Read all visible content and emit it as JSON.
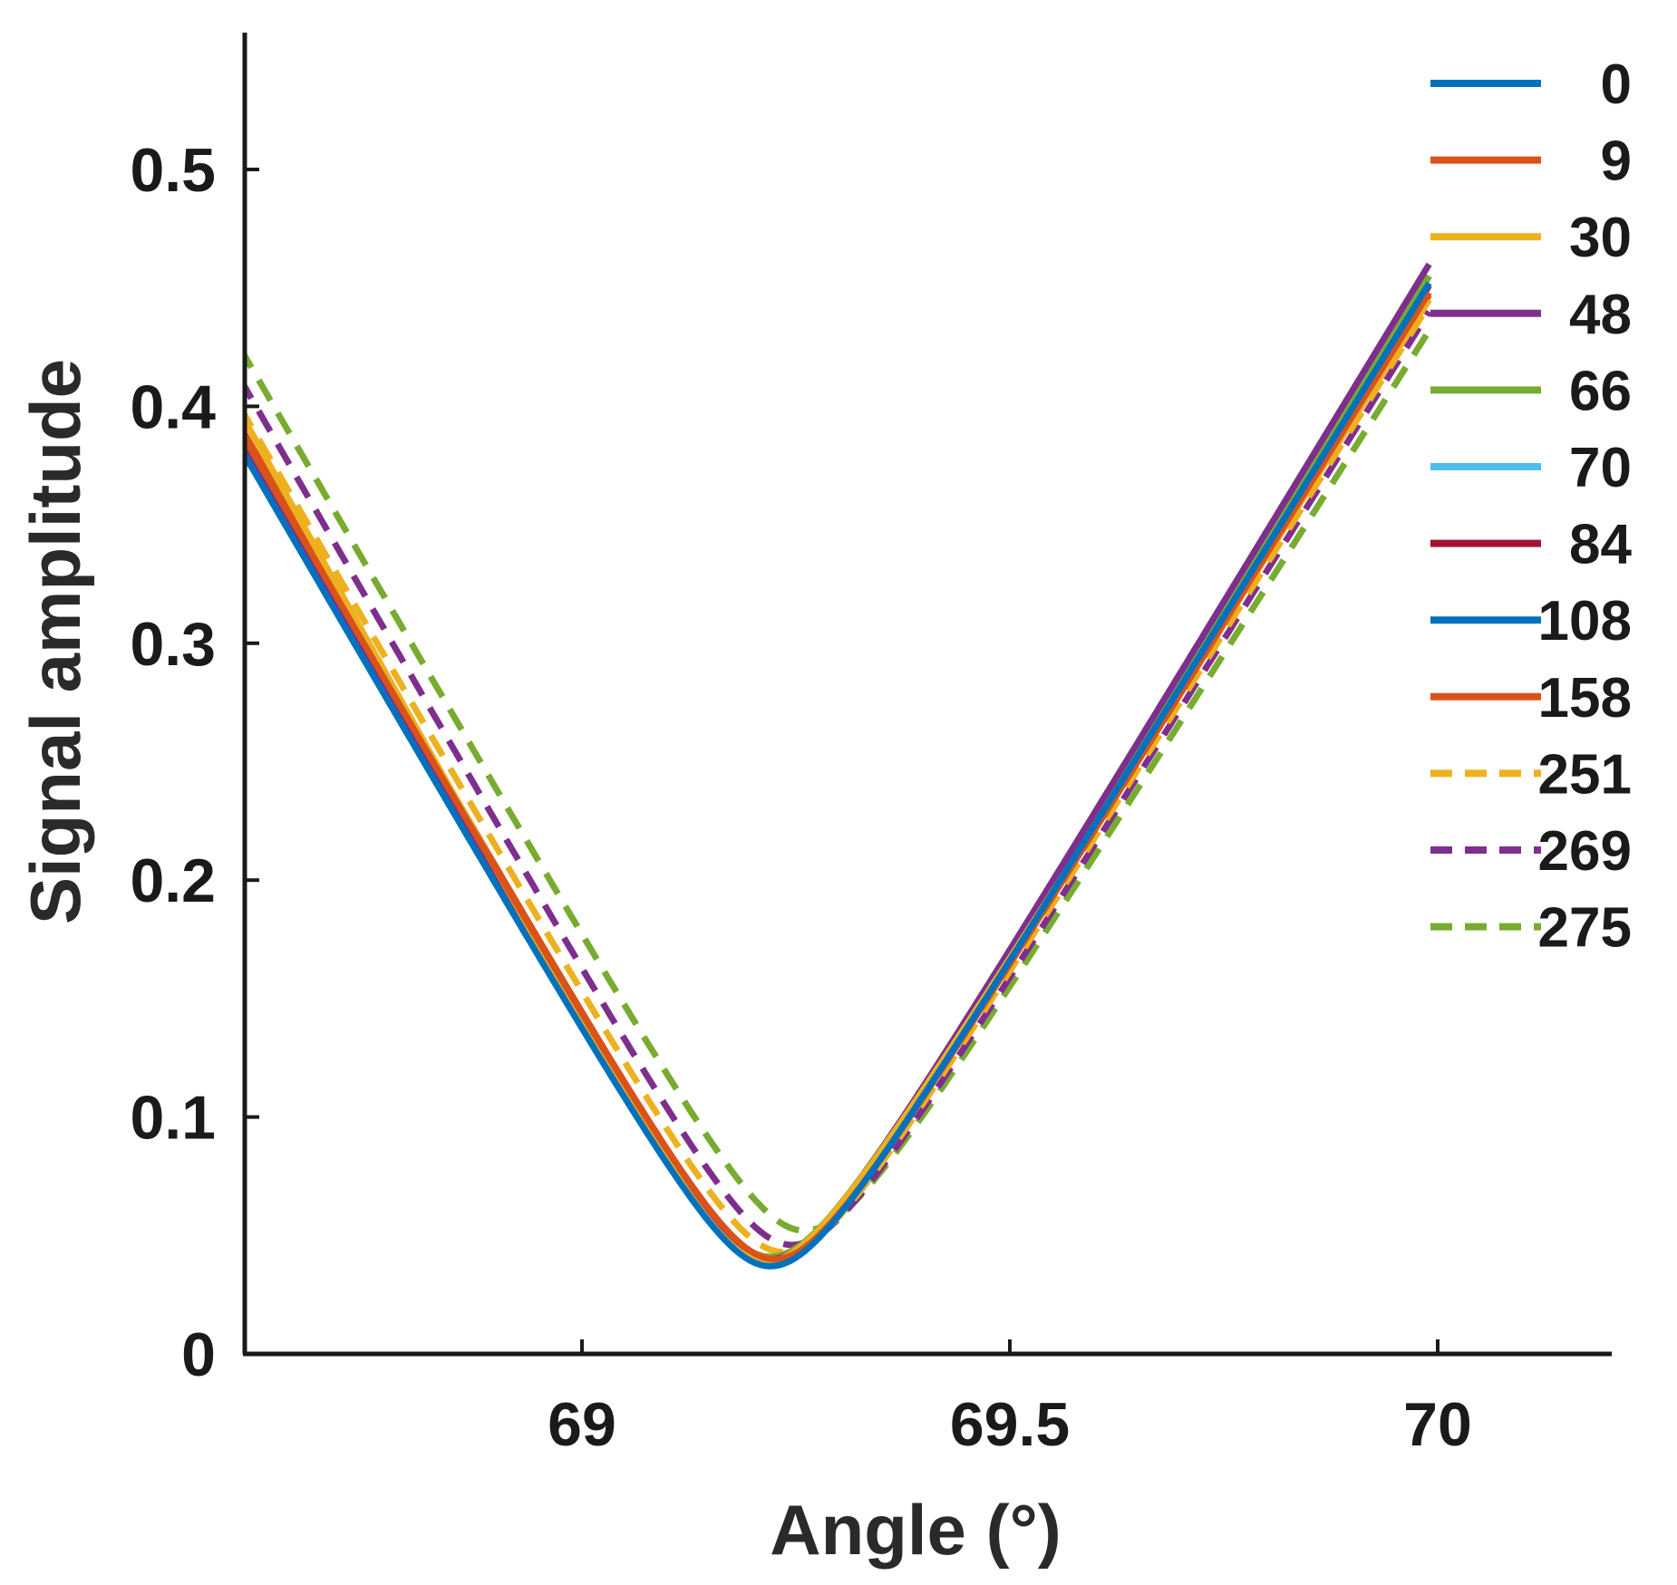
{
  "chart_data": {
    "type": "line",
    "title": "",
    "xlabel": "Angle (°)",
    "ylabel": "Signal amplitude",
    "xlim": [
      68.6,
      70.2
    ],
    "ylim": [
      0,
      0.557
    ],
    "xticks": [
      69,
      69.5,
      70
    ],
    "yticks": [
      0,
      0.1,
      0.2,
      0.3,
      0.4,
      0.5
    ],
    "xtick_labels": [
      "69",
      "69.5",
      "70"
    ],
    "ytick_labels": [
      "0",
      "0.1",
      "0.2",
      "0.3",
      "0.4",
      "0.5"
    ],
    "grid": false,
    "legend_position": "top-right",
    "series": [
      {
        "name": "0",
        "color": "#0072BD",
        "dash": "solid",
        "x0": 69.22,
        "ymin": 0.037,
        "y_left": 0.383,
        "y_right": 0.452
      },
      {
        "name": "9",
        "color": "#D95319",
        "dash": "solid",
        "x0": 69.225,
        "ymin": 0.04,
        "y_left": 0.39,
        "y_right": 0.448
      },
      {
        "name": "30",
        "color": "#EDB120",
        "dash": "solid",
        "x0": 69.215,
        "ymin": 0.039,
        "y_left": 0.398,
        "y_right": 0.445
      },
      {
        "name": "48",
        "color": "#7E2F8E",
        "dash": "solid",
        "x0": 69.22,
        "ymin": 0.04,
        "y_left": 0.387,
        "y_right": 0.46
      },
      {
        "name": "66",
        "color": "#77AC30",
        "dash": "solid",
        "x0": 69.22,
        "ymin": 0.041,
        "y_left": 0.385,
        "y_right": 0.455
      },
      {
        "name": "70",
        "color": "#4DBEEE",
        "dash": "solid",
        "x0": 69.22,
        "ymin": 0.04,
        "y_left": 0.385,
        "y_right": 0.452
      },
      {
        "name": "84",
        "color": "#A2142F",
        "dash": "solid",
        "x0": 69.222,
        "ymin": 0.04,
        "y_left": 0.388,
        "y_right": 0.451
      },
      {
        "name": "108",
        "color": "#0072BD",
        "dash": "solid",
        "x0": 69.22,
        "ymin": 0.038,
        "y_left": 0.384,
        "y_right": 0.455
      },
      {
        "name": "158",
        "color": "#D95319",
        "dash": "solid",
        "x0": 69.225,
        "ymin": 0.04,
        "y_left": 0.392,
        "y_right": 0.447
      },
      {
        "name": "251",
        "color": "#EDB120",
        "dash": "dashed",
        "x0": 69.235,
        "ymin": 0.043,
        "y_left": 0.4,
        "y_right": 0.443
      },
      {
        "name": "269",
        "color": "#7E2F8E",
        "dash": "dashed",
        "x0": 69.245,
        "ymin": 0.046,
        "y_left": 0.412,
        "y_right": 0.44
      },
      {
        "name": "275",
        "color": "#77AC30",
        "dash": "dashed",
        "x0": 69.26,
        "ymin": 0.052,
        "y_left": 0.425,
        "y_right": 0.432
      }
    ]
  }
}
